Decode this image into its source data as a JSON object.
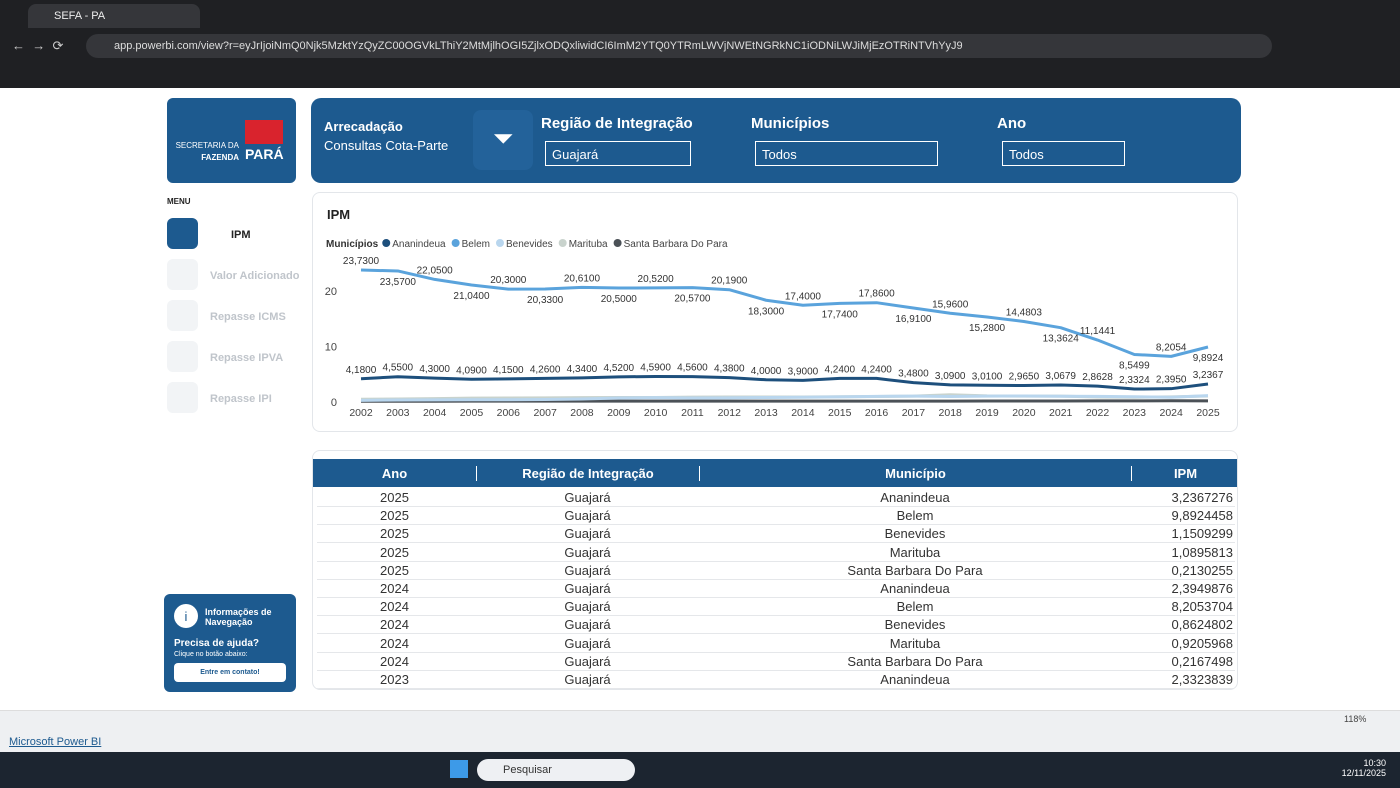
{
  "browser": {
    "tab_title": "SEFA - PA",
    "url": "app.powerbi.com/view?r=eyJrIjoiNmQ0Njk5MzktYzQyZC00OGVkLThiY2MtMjlhOGI5ZjlxODQxliwidCI6ImM2YTQ0YTRmLWVjNWEtNGRkNC1iODNiLWJiMjEzOTRiNTVhYyJ9"
  },
  "logo": {
    "line1": "SECRETARIA DA",
    "line2": "FAZENDA",
    "brand": "PARÁ"
  },
  "menu": {
    "label": "MENU",
    "items": [
      "IPM",
      "Valor Adicionado",
      "Repasse ICMS",
      "Repasse IPVA",
      "Repasse IPI"
    ]
  },
  "help": {
    "title": "Informações de Navegação",
    "question": "Precisa de ajuda?",
    "hint": "Clique no botão abaixo:",
    "button": "Entre em contato!"
  },
  "header": {
    "title": "Arrecadação",
    "subtitle": "Consultas Cota-Parte",
    "filters": [
      {
        "label": "Região de Integração",
        "value": "Guajará"
      },
      {
        "label": "Municípios",
        "value": "Todos"
      },
      {
        "label": "Ano",
        "value": "Todos"
      }
    ]
  },
  "chart_data": {
    "type": "line",
    "title": "IPM",
    "legend_title": "Municípios",
    "x": [
      2002,
      2003,
      2004,
      2005,
      2006,
      2007,
      2008,
      2009,
      2010,
      2011,
      2012,
      2013,
      2014,
      2015,
      2016,
      2017,
      2018,
      2019,
      2020,
      2021,
      2022,
      2023,
      2024,
      2025
    ],
    "xlim": [
      2002,
      2025
    ],
    "ylim": [
      0,
      25
    ],
    "yticks": [
      0,
      10,
      20
    ],
    "series": [
      {
        "name": "Ananindeua",
        "color": "#1d4f7c",
        "values": [
          4.18,
          4.55,
          4.3,
          4.09,
          4.15,
          4.26,
          4.34,
          4.52,
          4.59,
          4.56,
          4.38,
          4.0,
          3.9,
          4.24,
          4.24,
          3.48,
          3.09,
          3.01,
          2.965,
          3.0679,
          2.8628,
          2.3324,
          2.395,
          3.2367
        ],
        "value_labels": [
          "4,1800",
          "4,5500",
          "4,3000",
          "4,0900",
          "4,1500",
          "4,2600",
          "4,3400",
          "4,5200",
          "4,5900",
          "4,5600",
          "4,3800",
          "4,0000",
          "3,9000",
          "4,2400",
          "4,2400",
          "3,4800",
          "3,0900",
          "3,0100",
          "2,9650",
          "3,0679",
          "2,8628",
          "2,3324",
          "2,3950",
          "3,2367"
        ]
      },
      {
        "name": "Belem",
        "color": "#5aa3dc",
        "values": [
          23.73,
          23.57,
          22.05,
          21.04,
          20.3,
          20.33,
          20.61,
          20.5,
          20.52,
          20.57,
          20.19,
          18.3,
          17.4,
          17.74,
          17.86,
          16.91,
          15.96,
          15.28,
          14.4803,
          13.3624,
          11.1441,
          8.5499,
          8.2054,
          9.8924
        ],
        "value_labels": [
          "23,7300",
          "23,5700",
          "22,0500",
          "21,0400",
          "20,3000",
          "20,3300",
          "20,6100",
          "20,5000",
          "20,5200",
          "20,5700",
          "20,1900",
          "18,3000",
          "17,4000",
          "17,7400",
          "17,8600",
          "16,9100",
          "15,9600",
          "15,2800",
          "14,4803",
          "13,3624",
          "11,1441",
          "8,5499",
          "8,2054",
          "9,8924"
        ]
      },
      {
        "name": "Benevides",
        "color": "#b9d6ee",
        "values": [
          0.3,
          0.35,
          0.38,
          0.4,
          0.41,
          0.44,
          0.54,
          0.71,
          0.79,
          0.72,
          0.74,
          0.81,
          0.85,
          0.92,
          1.01,
          1.06,
          1.0,
          1.05,
          1.0807,
          1.0441,
          1.0086,
          0.95,
          0.8625,
          1.1509
        ]
      },
      {
        "name": "Marituba",
        "color": "#c9d3cd",
        "values": [
          0.5,
          0.54,
          0.6,
          0.7,
          0.72,
          0.75,
          0.79,
          0.8,
          0.81,
          0.88,
          0.9,
          0.89,
          0.9,
          0.95,
          1.0,
          1.05,
          1.31,
          1.1,
          1.05,
          1.0479,
          0.9052,
          0.85,
          0.9206,
          1.0896
        ]
      },
      {
        "name": "Santa Barbara Do Para",
        "color": "#4b5157",
        "values": [
          0.13,
          0.14,
          0.14,
          0.15,
          0.15,
          0.15,
          0.15,
          0.15,
          0.15,
          0.15,
          0.15,
          0.15,
          0.15,
          0.15,
          0.15,
          0.15,
          0.16,
          0.17,
          0.18,
          0.19,
          0.2,
          0.21,
          0.2167,
          0.213
        ]
      }
    ]
  },
  "table": {
    "columns": [
      "Ano",
      "Região de Integração",
      "Município",
      "IPM"
    ],
    "rows": [
      [
        "2025",
        "Guajará",
        "Ananindeua",
        "3,2367276"
      ],
      [
        "2025",
        "Guajará",
        "Belem",
        "9,8924458"
      ],
      [
        "2025",
        "Guajará",
        "Benevides",
        "1,1509299"
      ],
      [
        "2025",
        "Guajará",
        "Marituba",
        "1,0895813"
      ],
      [
        "2025",
        "Guajará",
        "Santa Barbara Do Para",
        "0,2130255"
      ],
      [
        "2024",
        "Guajará",
        "Ananindeua",
        "2,3949876"
      ],
      [
        "2024",
        "Guajará",
        "Belem",
        "8,2053704"
      ],
      [
        "2024",
        "Guajará",
        "Benevides",
        "0,8624802"
      ],
      [
        "2024",
        "Guajará",
        "Marituba",
        "0,9205968"
      ],
      [
        "2024",
        "Guajará",
        "Santa Barbara Do Para",
        "0,2167498"
      ],
      [
        "2023",
        "Guajará",
        "Ananindeua",
        "2,3323839"
      ]
    ]
  },
  "footer": {
    "brand": "Microsoft Power BI",
    "zoom": "118%"
  },
  "taskbar": {
    "search": "Pesquisar",
    "time": "10:30",
    "date": "12/11/2025"
  }
}
